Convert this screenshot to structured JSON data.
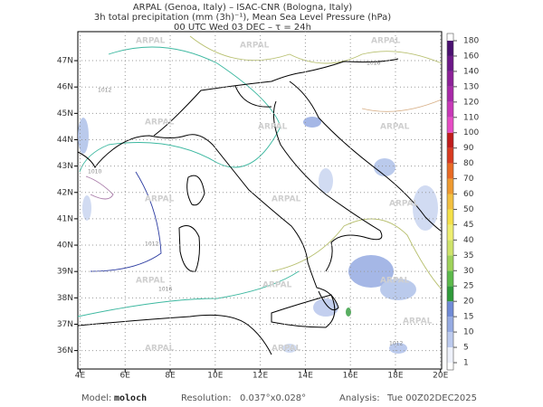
{
  "header": {
    "line1": "ARPAL (Genoa, Italy)  –  ISAC-CNR (Bologna, Italy)",
    "line2": "3h total precipitation (mm (3h)⁻¹), Mean Sea Level Pressure (hPa)",
    "line3": "00 UTC Wed 03 DEC  –  τ = 24h"
  },
  "map": {
    "lonlim": [
      3.9,
      20.05
    ],
    "latlim": [
      35.3,
      48.1
    ],
    "lon_ticks": [
      {
        "value": 4,
        "label": "4E"
      },
      {
        "value": 6,
        "label": "6E"
      },
      {
        "value": 8,
        "label": "8E"
      },
      {
        "value": 10,
        "label": "10E"
      },
      {
        "value": 12,
        "label": "12E"
      },
      {
        "value": 14,
        "label": "14E"
      },
      {
        "value": 16,
        "label": "16E"
      },
      {
        "value": 18,
        "label": "18E"
      },
      {
        "value": 20,
        "label": "20E"
      }
    ],
    "lat_ticks": [
      {
        "value": 36,
        "label": "36N"
      },
      {
        "value": 37,
        "label": "37N"
      },
      {
        "value": 38,
        "label": "38N"
      },
      {
        "value": 39,
        "label": "39N"
      },
      {
        "value": 40,
        "label": "40N"
      },
      {
        "value": 41,
        "label": "41N"
      },
      {
        "value": 42,
        "label": "42N"
      },
      {
        "value": 43,
        "label": "43N"
      },
      {
        "value": 44,
        "label": "44N"
      },
      {
        "value": 45,
        "label": "45N"
      },
      {
        "value": 46,
        "label": "46N"
      },
      {
        "value": 47,
        "label": "47N"
      }
    ],
    "watermark": "ARPAL",
    "isobar_labels": [
      1012,
      1016,
      1010,
      1012,
      1016,
      1012
    ]
  },
  "colorbar": {
    "levels": [
      1,
      5,
      10,
      15,
      20,
      25,
      30,
      35,
      40,
      45,
      50,
      60,
      70,
      80,
      90,
      100,
      110,
      120,
      130,
      140,
      160,
      180
    ],
    "colors": [
      "#eef1fa",
      "#bccaee",
      "#96abe2",
      "#6f8ad6",
      "#2f9a3a",
      "#5cba4a",
      "#9fd25a",
      "#cfe36a",
      "#eeee70",
      "#f4e048",
      "#f2c040",
      "#ee9a30",
      "#e86a24",
      "#d83a20",
      "#c01c1c",
      "#e64cc4",
      "#c838b8",
      "#a828a8",
      "#8c2098",
      "#6c1888",
      "#4a1070"
    ]
  },
  "footer": {
    "model_label": "Model:",
    "model": "moloch",
    "resolution_label": "Resolution:",
    "resolution": "0.037°x0.028°",
    "analysis_label": "Analysis:",
    "analysis": "Tue 00Z02DEC2025"
  }
}
